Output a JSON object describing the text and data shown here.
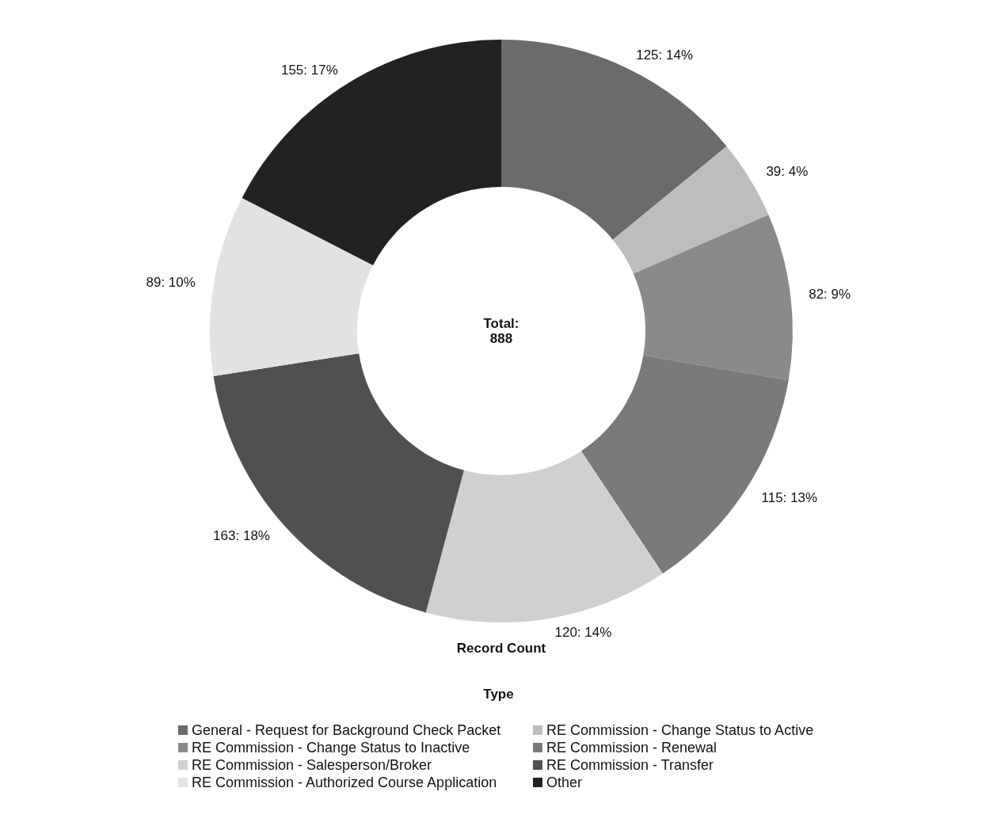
{
  "chart_data": {
    "type": "donut",
    "categories": [
      "General - Request for Background Check Packet",
      "RE Commission - Change Status to Active",
      "RE Commission - Change Status to Inactive",
      "RE Commission - Renewal",
      "RE Commission - Salesperson/Broker",
      "RE Commission - Transfer",
      "RE Commission - Authorized Course Application",
      "Other"
    ],
    "values": [
      125,
      39,
      82,
      115,
      120,
      163,
      89,
      155
    ],
    "value_labels": [
      "125: 14%",
      "39: 4%",
      "82: 9%",
      "115: 13%",
      "120: 14%",
      "163: 18%",
      "89: 10%",
      "155: 17%"
    ],
    "colors": [
      "#6b6b6b",
      "#bdbdbd",
      "#8a8a8a",
      "#7a7a7a",
      "#d0d0d0",
      "#505050",
      "#e2e2e2",
      "#222222"
    ],
    "legend": "bottom",
    "legend_title": "Type",
    "annotations": [
      "Total:\n888",
      "Record Count"
    ]
  }
}
